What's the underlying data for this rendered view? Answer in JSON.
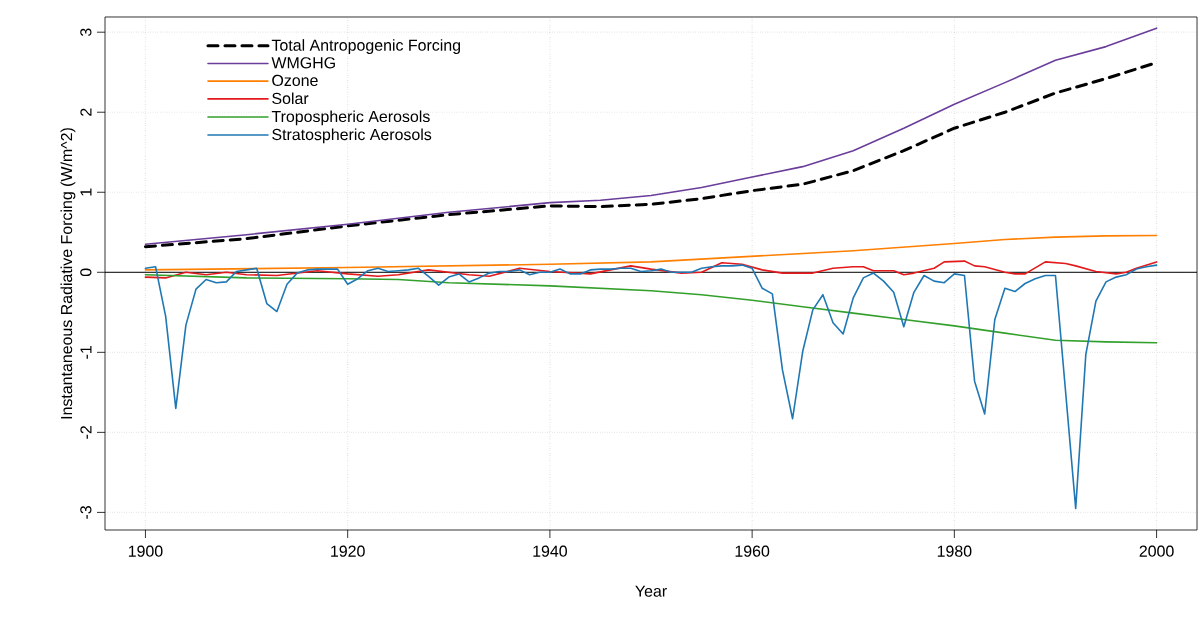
{
  "chart_data": {
    "type": "line",
    "xlabel": "Year",
    "ylabel": "Instantaneous Radiative Forcing (W/m^2)",
    "xlim": [
      1896,
      2004
    ],
    "ylim": [
      -3.22,
      3.19
    ],
    "xticks": [
      1900,
      1920,
      1940,
      1960,
      1980,
      2000
    ],
    "yticks": [
      -3,
      -2,
      -1,
      0,
      1,
      2,
      3
    ],
    "grid": true,
    "legend": "top left",
    "ref_lines": [
      {
        "axis": "y",
        "value": 0,
        "color": "#000000"
      }
    ],
    "x": [
      1900,
      1901,
      1902,
      1903,
      1904,
      1905,
      1906,
      1907,
      1908,
      1909,
      1910,
      1911,
      1912,
      1913,
      1914,
      1915,
      1916,
      1917,
      1918,
      1919,
      1920,
      1921,
      1922,
      1923,
      1924,
      1925,
      1926,
      1927,
      1928,
      1929,
      1930,
      1931,
      1932,
      1933,
      1934,
      1935,
      1936,
      1937,
      1938,
      1939,
      1940,
      1941,
      1942,
      1943,
      1944,
      1945,
      1946,
      1947,
      1948,
      1949,
      1950,
      1951,
      1952,
      1953,
      1954,
      1955,
      1956,
      1957,
      1958,
      1959,
      1960,
      1961,
      1962,
      1963,
      1964,
      1965,
      1966,
      1967,
      1968,
      1969,
      1970,
      1971,
      1972,
      1973,
      1974,
      1975,
      1976,
      1977,
      1978,
      1979,
      1980,
      1981,
      1982,
      1983,
      1984,
      1985,
      1986,
      1987,
      1988,
      1989,
      1990,
      1991,
      1992,
      1993,
      1994,
      1995,
      1996,
      1997,
      1998,
      1999,
      2000
    ],
    "series": [
      {
        "name": "Total Antropogenic Forcing",
        "color": "#000000",
        "line_style": "dashed",
        "x": [
          1900,
          1910,
          1920,
          1930,
          1940,
          1945,
          1950,
          1955,
          1960,
          1965,
          1970,
          1975,
          1980,
          1985,
          1990,
          1995,
          2000
        ],
        "values": [
          0.32,
          0.42,
          0.58,
          0.72,
          0.83,
          0.82,
          0.85,
          0.92,
          1.02,
          1.1,
          1.27,
          1.52,
          1.8,
          2.0,
          2.24,
          2.42,
          2.62
        ]
      },
      {
        "name": "WMGHG",
        "color": "#6a3d9a",
        "line_style": "solid",
        "x": [
          1900,
          1910,
          1920,
          1930,
          1940,
          1945,
          1950,
          1955,
          1960,
          1965,
          1970,
          1975,
          1980,
          1985,
          1990,
          1995,
          2000
        ],
        "values": [
          0.35,
          0.47,
          0.6,
          0.75,
          0.87,
          0.9,
          0.96,
          1.06,
          1.19,
          1.32,
          1.52,
          1.8,
          2.1,
          2.37,
          2.65,
          2.82,
          3.05
        ]
      },
      {
        "name": "Ozone",
        "color": "#ff7f00",
        "line_style": "solid",
        "x": [
          1900,
          1920,
          1940,
          1950,
          1960,
          1970,
          1980,
          1985,
          1990,
          1995,
          2000
        ],
        "values": [
          0.03,
          0.06,
          0.1,
          0.13,
          0.2,
          0.27,
          0.36,
          0.41,
          0.44,
          0.455,
          0.46
        ]
      },
      {
        "name": "Solar",
        "color": "#e31a1c",
        "line_style": "solid",
        "x": [
          1900,
          1902,
          1904,
          1906,
          1908,
          1910,
          1913,
          1917,
          1920,
          1923,
          1925,
          1928,
          1932,
          1934,
          1937,
          1940,
          1944,
          1948,
          1950,
          1953,
          1955,
          1957,
          1959,
          1961,
          1963,
          1966,
          1968,
          1970,
          1971,
          1972,
          1974,
          1975,
          1976,
          1978,
          1979,
          1981,
          1982,
          1983,
          1985,
          1986,
          1987,
          1989,
          1991,
          1992,
          1994,
          1996,
          1997,
          1998,
          2000
        ],
        "values": [
          -0.06,
          -0.07,
          0.0,
          -0.03,
          0.0,
          -0.03,
          -0.04,
          0.02,
          -0.02,
          -0.05,
          -0.03,
          0.03,
          -0.03,
          -0.05,
          0.05,
          0.01,
          -0.02,
          0.08,
          0.04,
          -0.01,
          0.0,
          0.12,
          0.1,
          0.03,
          -0.01,
          -0.01,
          0.05,
          0.07,
          0.07,
          0.02,
          0.02,
          -0.03,
          -0.01,
          0.05,
          0.13,
          0.14,
          0.08,
          0.07,
          0.0,
          -0.02,
          -0.02,
          0.13,
          0.11,
          0.08,
          0.01,
          -0.02,
          0.0,
          0.05,
          0.13
        ]
      },
      {
        "name": "Tropospheric Aerosols",
        "color": "#33a02c",
        "line_style": "solid",
        "x": [
          1900,
          1910,
          1920,
          1925,
          1930,
          1940,
          1950,
          1955,
          1960,
          1965,
          1970,
          1975,
          1980,
          1985,
          1990,
          1995,
          2000
        ],
        "values": [
          -0.03,
          -0.07,
          -0.08,
          -0.09,
          -0.13,
          -0.17,
          -0.23,
          -0.28,
          -0.35,
          -0.43,
          -0.51,
          -0.59,
          -0.67,
          -0.76,
          -0.85,
          -0.87,
          -0.88
        ]
      },
      {
        "name": "Stratospheric Aerosols",
        "color": "#1f78b4",
        "line_style": "solid",
        "values": [
          0.05,
          0.07,
          -0.55,
          -1.7,
          -0.66,
          -0.21,
          -0.09,
          -0.13,
          -0.12,
          0.01,
          0.03,
          0.05,
          -0.39,
          -0.49,
          -0.15,
          -0.01,
          0.03,
          0.04,
          0.04,
          0.04,
          -0.15,
          -0.08,
          0.02,
          0.05,
          0.01,
          0.02,
          0.03,
          0.05,
          -0.05,
          -0.16,
          -0.06,
          -0.02,
          -0.12,
          -0.07,
          -0.01,
          0.01,
          0.01,
          0.03,
          -0.03,
          0.0,
          0.0,
          0.04,
          -0.02,
          -0.02,
          0.03,
          0.04,
          0.04,
          0.05,
          0.05,
          0.01,
          0.02,
          0.04,
          0.0,
          0.0,
          0.0,
          0.05,
          0.07,
          0.08,
          0.08,
          0.09,
          0.05,
          -0.2,
          -0.27,
          -1.22,
          -1.83,
          -0.99,
          -0.47,
          -0.28,
          -0.63,
          -0.77,
          -0.32,
          -0.07,
          -0.01,
          -0.11,
          -0.25,
          -0.68,
          -0.25,
          -0.04,
          -0.11,
          -0.13,
          -0.02,
          -0.04,
          -1.36,
          -1.77,
          -0.59,
          -0.2,
          -0.24,
          -0.14,
          -0.08,
          -0.04,
          -0.04,
          -1.49,
          -2.95,
          -1.03,
          -0.36,
          -0.12,
          -0.06,
          -0.03,
          0.04,
          0.07,
          0.09
        ]
      }
    ]
  }
}
